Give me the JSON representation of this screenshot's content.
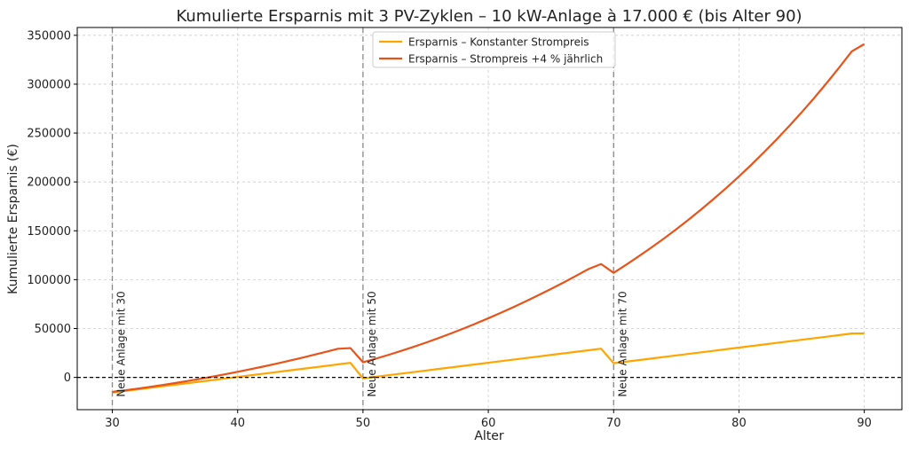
{
  "chart_data": {
    "type": "line",
    "title": "Kumulierte Ersparnis mit 3 PV-Zyklen – 10 kW-Anlage à 17.000 € (bis Alter 90)",
    "xlabel": "Alter",
    "ylabel": "Kumulierte Ersparnis (€)",
    "xlim": [
      27.2,
      93.0
    ],
    "ylim": [
      -33000,
      358000
    ],
    "x_ticks": [
      30,
      40,
      50,
      60,
      70,
      80,
      90
    ],
    "y_ticks": [
      0,
      50000,
      100000,
      150000,
      200000,
      250000,
      300000,
      350000
    ],
    "grid": true,
    "legend_position": "top-center",
    "baseline": 0,
    "colors": {
      "constant": "#FFA500",
      "increase": "#E8531A",
      "vline": "#888888"
    },
    "series": [
      {
        "name": "Ersparnis – Konstanter Strompreis",
        "color": "#FFA500",
        "x": [
          30,
          31,
          32,
          33,
          34,
          35,
          36,
          37,
          38,
          39,
          40,
          41,
          42,
          43,
          44,
          45,
          46,
          47,
          48,
          49,
          50,
          51,
          52,
          53,
          54,
          55,
          56,
          57,
          58,
          59,
          60,
          61,
          62,
          63,
          64,
          65,
          66,
          67,
          68,
          69,
          70,
          71,
          72,
          73,
          74,
          75,
          76,
          77,
          78,
          79,
          80,
          81,
          82,
          83,
          84,
          85,
          86,
          87,
          88,
          89,
          90
        ],
        "values": [
          -15500,
          -13900,
          -12300,
          -10700,
          -9100,
          -7500,
          -5900,
          -4300,
          -2700,
          -1100,
          500,
          2100,
          3700,
          5300,
          6900,
          8500,
          10100,
          11700,
          13300,
          14900,
          -1000,
          600,
          2200,
          3800,
          5400,
          7000,
          8600,
          10200,
          11800,
          13400,
          15000,
          16600,
          18200,
          19800,
          21400,
          23000,
          24600,
          26200,
          27800,
          29400,
          14500,
          16100,
          17700,
          19300,
          20900,
          22500,
          24100,
          25700,
          27300,
          28900,
          30500,
          32100,
          33700,
          35300,
          36900,
          38500,
          40100,
          41700,
          43300,
          44900,
          45000
        ]
      },
      {
        "name": "Ersparnis – Strompreis +4 % jährlich",
        "color": "#E8531A",
        "x": [
          30,
          31,
          32,
          33,
          34,
          35,
          36,
          37,
          38,
          39,
          40,
          41,
          42,
          43,
          44,
          45,
          46,
          47,
          48,
          49,
          50,
          51,
          52,
          53,
          54,
          55,
          56,
          57,
          58,
          59,
          60,
          61,
          62,
          63,
          64,
          65,
          66,
          67,
          68,
          69,
          70,
          71,
          72,
          73,
          74,
          75,
          76,
          77,
          78,
          79,
          80,
          81,
          82,
          83,
          84,
          85,
          86,
          87,
          88,
          89,
          90
        ],
        "values": [
          -14800,
          -13200,
          -11500,
          -9700,
          -7800,
          -5800,
          -3700,
          -1500,
          800,
          3200,
          5700,
          8300,
          11000,
          13800,
          16700,
          19700,
          22800,
          26000,
          29300,
          30000,
          15500,
          19100,
          22900,
          26900,
          31100,
          35500,
          40100,
          44900,
          49900,
          55100,
          60500,
          66100,
          71900,
          77900,
          84100,
          90500,
          97100,
          103900,
          110900,
          116000,
          107000,
          115300,
          123900,
          132800,
          142000,
          151600,
          161600,
          172000,
          182800,
          194000,
          205700,
          217800,
          230400,
          243500,
          257100,
          271200,
          285900,
          301200,
          317100,
          333600,
          341000
        ]
      }
    ],
    "annotations": [
      {
        "x": 30,
        "text": "Neue Anlage mit 30"
      },
      {
        "x": 50,
        "text": "Neue Anlage mit 50"
      },
      {
        "x": 70,
        "text": "Neue Anlage mit 70"
      }
    ]
  }
}
